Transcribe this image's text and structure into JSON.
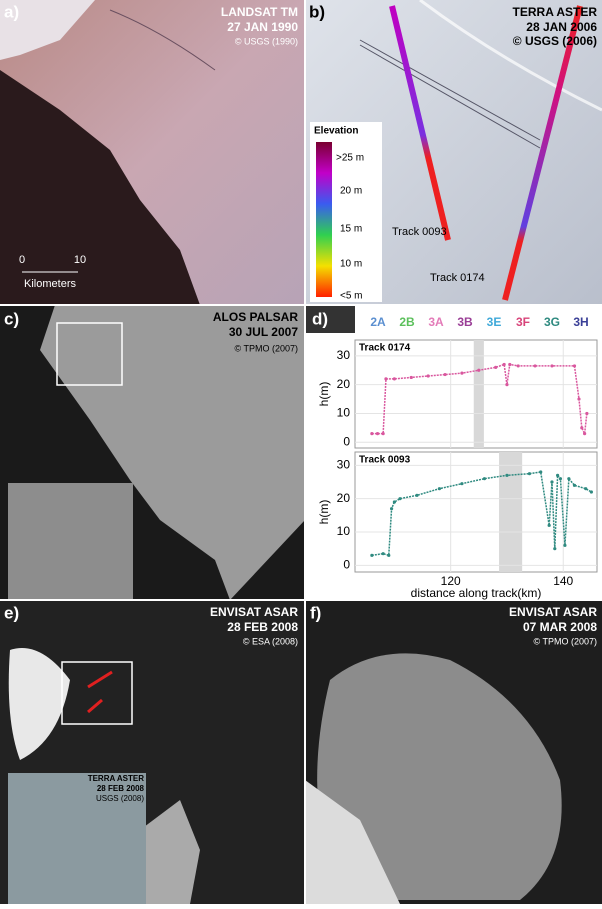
{
  "panels": [
    {
      "label": "a)",
      "title": "LANDSAT TM",
      "date": "27 JAN 1990",
      "credit": "© USGS (1990)",
      "scale_labels": [
        "0",
        "10"
      ],
      "scale_unit": "Kilometers"
    },
    {
      "label": "b)",
      "title": "TERRA ASTER",
      "date": "28 JAN 2006",
      "credit": "© USGS (2006)",
      "legend_title": "Elevation",
      "legend_labels": [
        ">25 m",
        "20 m",
        "15 m",
        "10 m",
        "<5 m"
      ],
      "tracks": [
        "Track 0093",
        "Track 0174"
      ]
    },
    {
      "label": "c)",
      "title": "ALOS PALSAR",
      "date": "30 JUL 2007",
      "credit": "© TPMO (2007)"
    },
    {
      "label": "d)"
    },
    {
      "label": "e)",
      "title": "ENVISAT ASAR",
      "date": "28 FEB 2008",
      "credit": "© ESA (2008)",
      "inset_title": "TERRA ASTER",
      "inset_date": "28 FEB 2008",
      "inset_credit": "USGS (2008)"
    },
    {
      "label": "f)",
      "title": "ENVISAT ASAR",
      "date": "07 MAR 2008",
      "credit": "© TPMO (2007)"
    }
  ],
  "chart_data": [
    {
      "type": "line",
      "title": "Track 0174",
      "ylabel": "h(m)",
      "legend": [
        {
          "name": "2A",
          "color": "#5b8fd0"
        },
        {
          "name": "2B",
          "color": "#5cc05c"
        },
        {
          "name": "3A",
          "color": "#e37bb8"
        },
        {
          "name": "3B",
          "color": "#9a3e96"
        },
        {
          "name": "3E",
          "color": "#3fa9d9"
        },
        {
          "name": "3F",
          "color": "#d8447a"
        },
        {
          "name": "3G",
          "color": "#2f8a80"
        },
        {
          "name": "3H",
          "color": "#3a3f97"
        }
      ],
      "x": [
        106,
        107,
        108,
        108.5,
        110,
        113,
        116,
        119,
        122,
        125,
        128,
        129.5,
        130,
        130.5,
        132,
        135,
        138,
        142,
        142.8,
        143.3,
        143.8,
        144.2
      ],
      "series": [
        {
          "color": "#d9579e",
          "values": [
            3,
            3,
            3,
            22,
            22,
            22.5,
            23,
            23.5,
            24,
            25,
            26,
            27,
            20,
            27,
            26.5,
            26.5,
            26.5,
            26.5,
            15,
            5,
            3,
            10
          ]
        }
      ],
      "shaded_ranges": [
        [
          124.1,
          125.9
        ]
      ],
      "xlim": [
        103,
        146
      ],
      "xticks": [
        120,
        140
      ],
      "ylim": [
        -2,
        35.5
      ],
      "yticks": [
        0,
        10,
        20,
        30
      ]
    },
    {
      "type": "line",
      "title": "Track 0093",
      "ylabel": "h(m)",
      "xlabel": "distance along track(km)",
      "x": [
        106,
        108,
        109,
        109.5,
        110,
        111,
        114,
        118,
        122,
        126,
        130,
        134,
        136,
        137.5,
        138,
        138.5,
        139,
        139.5,
        140.3,
        141,
        142,
        144,
        145
      ],
      "series": [
        {
          "color": "#2f8a80",
          "values": [
            3,
            3.5,
            3,
            17,
            19,
            20,
            21,
            23,
            24.5,
            26,
            27,
            27.5,
            28,
            12,
            25,
            5,
            27,
            26,
            6,
            26,
            24,
            23,
            22
          ]
        }
      ],
      "shaded_ranges": [
        [
          128.6,
          132.7
        ]
      ],
      "xlim": [
        103,
        146
      ],
      "xticks": [
        120,
        140
      ],
      "ylim": [
        -2,
        34
      ],
      "yticks": [
        0,
        10,
        20,
        30
      ]
    }
  ]
}
